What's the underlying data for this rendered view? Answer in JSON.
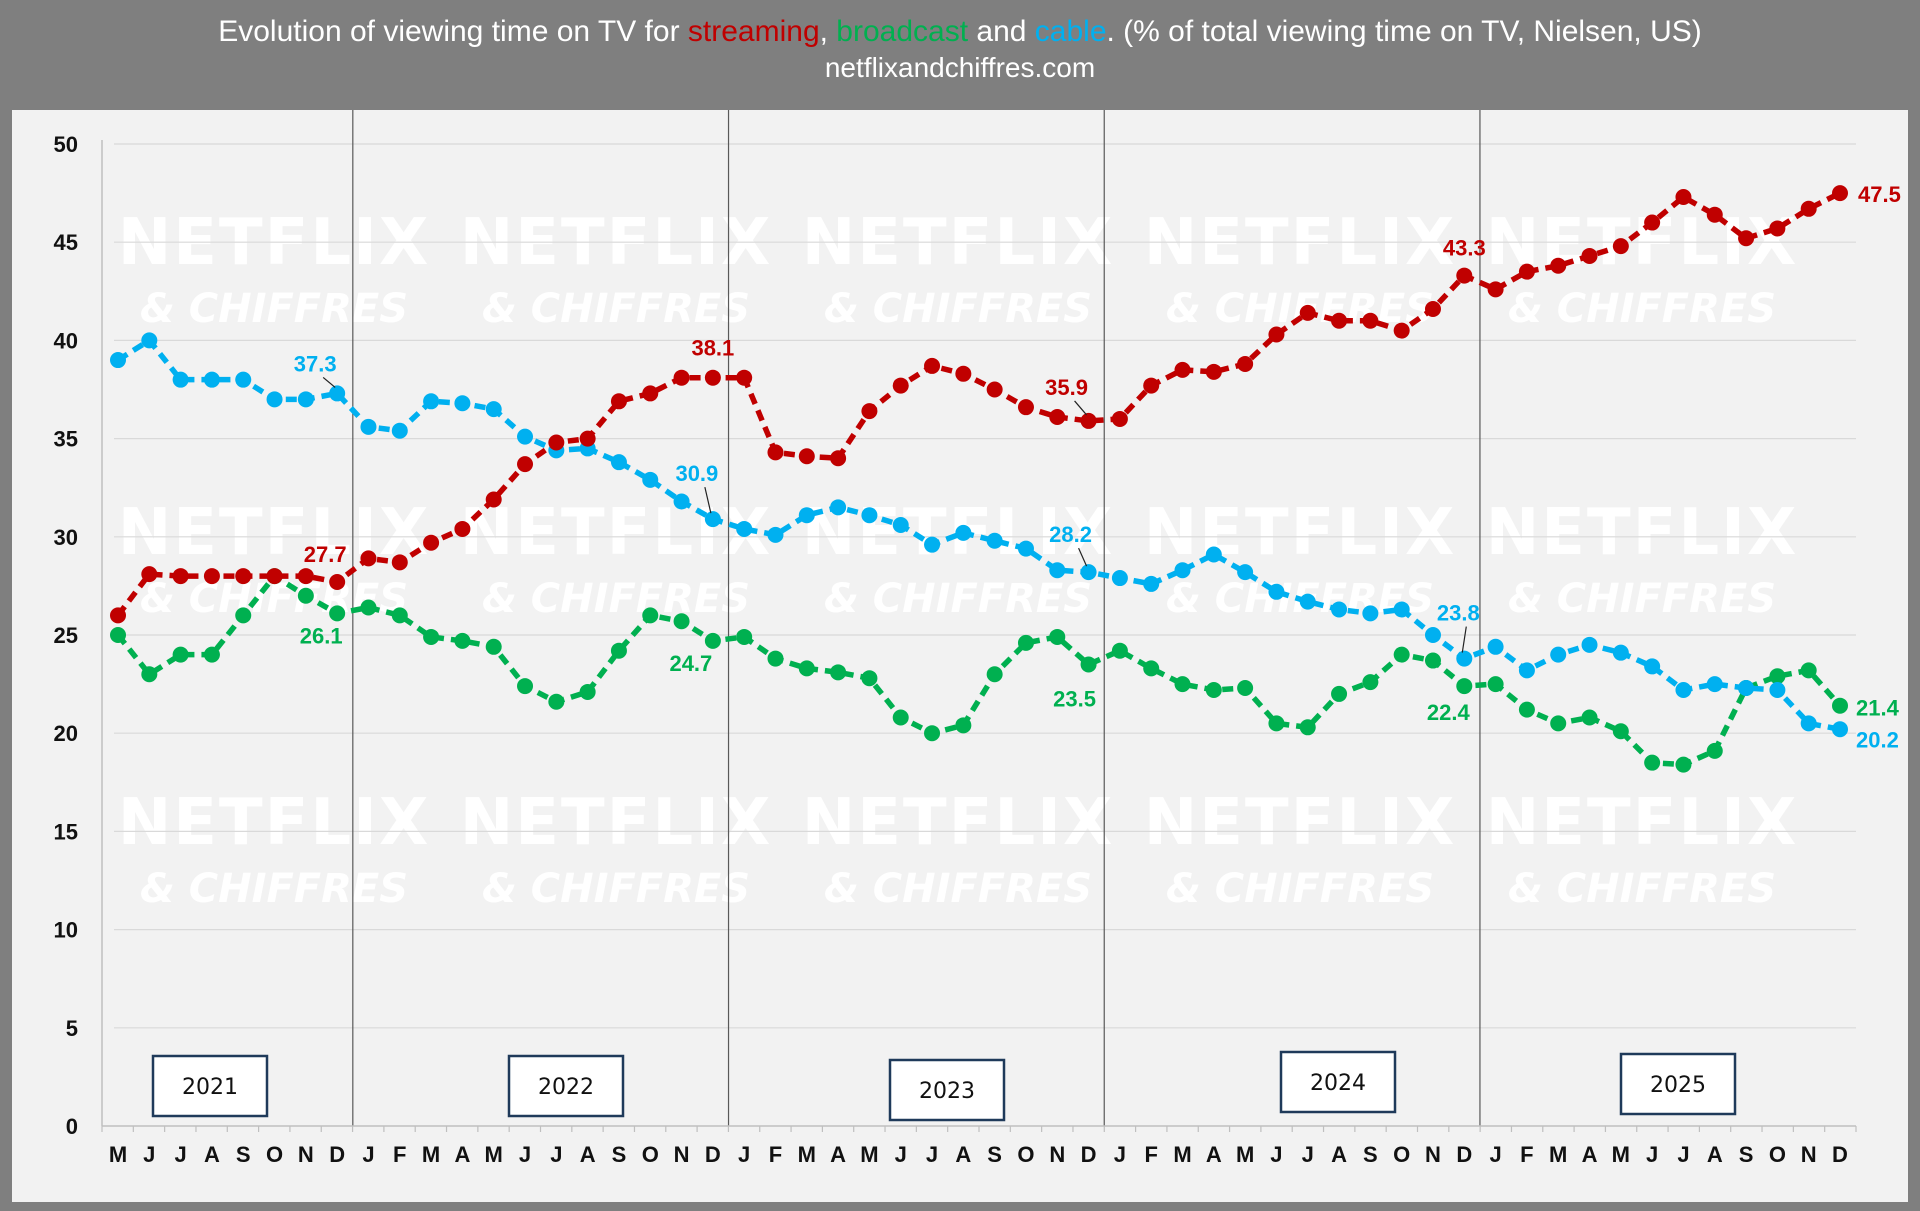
{
  "header": {
    "title_parts": {
      "prefix": "Evolution of viewing time on TV for ",
      "streaming": "streaming",
      "comma": ", ",
      "broadcast": "broadcast",
      "and": " and ",
      "cable": "cable",
      "suffix": ". (% of total viewing time on TV, Nielsen, US)"
    },
    "subtitle": "netflixandchiffres.com"
  },
  "colors": {
    "streaming": "#c00000",
    "broadcast": "#00b050",
    "cable": "#00b0f0",
    "background": "#7f7f7f",
    "panel": "#f2f2f2"
  },
  "watermark": {
    "line1": "NETFLIX",
    "line2": "& CHIFFRES"
  },
  "chart_data": {
    "type": "line",
    "title": "Evolution of viewing time on TV for streaming, broadcast and cable. (% of total viewing time on TV, Nielsen, US)",
    "subtitle": "netflixandchiffres.com",
    "xlabel": "",
    "ylabel": "",
    "ylim": [
      0,
      50
    ],
    "yticks": [
      0,
      5,
      10,
      15,
      20,
      25,
      30,
      35,
      40,
      45,
      50
    ],
    "categories": [
      "M",
      "J",
      "J",
      "A",
      "S",
      "O",
      "N",
      "D",
      "J",
      "F",
      "M",
      "A",
      "M",
      "J",
      "J",
      "A",
      "S",
      "O",
      "N",
      "D",
      "J",
      "F",
      "M",
      "A",
      "M",
      "J",
      "J",
      "A",
      "S",
      "O",
      "N",
      "D",
      "J",
      "F",
      "M",
      "A",
      "M",
      "J",
      "J",
      "A",
      "S",
      "O",
      "N",
      "D",
      "J",
      "F",
      "M",
      "A",
      "M",
      "J",
      "J",
      "A",
      "S",
      "O",
      "N",
      "D"
    ],
    "years": [
      "2021",
      "2022",
      "2023",
      "2024",
      "2025"
    ],
    "year_start_indices": [
      0,
      8,
      20,
      32,
      44
    ],
    "legend": "in title",
    "series": [
      {
        "name": "streaming",
        "color": "#c00000",
        "values": [
          26.0,
          28.1,
          28.0,
          28.0,
          28.0,
          28.0,
          28.0,
          27.7,
          28.9,
          28.7,
          29.7,
          30.4,
          31.9,
          33.7,
          34.8,
          35.0,
          36.9,
          37.3,
          38.1,
          38.1,
          38.1,
          34.3,
          34.1,
          34.0,
          36.4,
          37.7,
          38.7,
          38.3,
          37.5,
          36.6,
          36.1,
          35.9,
          36.0,
          37.7,
          38.5,
          38.4,
          38.8,
          40.3,
          41.4,
          41.0,
          41.0,
          40.5,
          41.6,
          43.3,
          42.6,
          43.5,
          43.8,
          44.3,
          44.8,
          46.0,
          47.3,
          46.4,
          45.2,
          45.7,
          46.7,
          47.5
        ]
      },
      {
        "name": "cable",
        "color": "#00b0f0",
        "values": [
          39.0,
          40.0,
          38.0,
          38.0,
          38.0,
          37.0,
          37.0,
          37.3,
          35.6,
          35.4,
          36.9,
          36.8,
          36.5,
          35.1,
          34.4,
          34.5,
          33.8,
          32.9,
          31.8,
          30.9,
          30.4,
          30.1,
          31.1,
          31.5,
          31.1,
          30.6,
          29.6,
          30.2,
          29.8,
          29.4,
          28.3,
          28.2,
          27.9,
          27.6,
          28.3,
          29.1,
          28.2,
          27.2,
          26.7,
          26.3,
          26.1,
          26.3,
          25.0,
          23.8,
          24.4,
          23.2,
          24.0,
          24.5,
          24.1,
          23.4,
          22.2,
          22.5,
          22.3,
          22.2,
          20.5,
          20.2
        ]
      },
      {
        "name": "broadcast",
        "color": "#00b050",
        "values": [
          25.0,
          23.0,
          24.0,
          24.0,
          26.0,
          28.0,
          27.0,
          26.1,
          26.4,
          26.0,
          24.9,
          24.7,
          24.4,
          22.4,
          21.6,
          22.1,
          24.2,
          26.0,
          25.7,
          24.7,
          24.9,
          23.8,
          23.3,
          23.1,
          22.8,
          20.8,
          20.0,
          20.4,
          23.0,
          24.6,
          24.9,
          23.5,
          24.2,
          23.3,
          22.5,
          22.2,
          22.3,
          20.5,
          20.3,
          22.0,
          22.6,
          24.0,
          23.7,
          22.4,
          22.5,
          21.2,
          20.5,
          20.8,
          20.1,
          18.5,
          18.4,
          19.1,
          22.3,
          22.9,
          23.2,
          21.4
        ]
      }
    ],
    "annotations": [
      {
        "series": "cable",
        "index": 7,
        "label": "37.3"
      },
      {
        "series": "streaming",
        "index": 7,
        "label": "27.7"
      },
      {
        "series": "broadcast",
        "index": 7,
        "label": "26.1"
      },
      {
        "series": "streaming",
        "index": 19,
        "label": "38.1"
      },
      {
        "series": "cable",
        "index": 19,
        "label": "30.9"
      },
      {
        "series": "broadcast",
        "index": 19,
        "label": "24.7"
      },
      {
        "series": "streaming",
        "index": 31,
        "label": "35.9"
      },
      {
        "series": "cable",
        "index": 31,
        "label": "28.2"
      },
      {
        "series": "broadcast",
        "index": 31,
        "label": "23.5"
      },
      {
        "series": "streaming",
        "index": 43,
        "label": "43.3"
      },
      {
        "series": "cable",
        "index": 43,
        "label": "23.8"
      },
      {
        "series": "broadcast",
        "index": 43,
        "label": "22.4"
      },
      {
        "series": "streaming",
        "index": 55,
        "label": "47.5"
      },
      {
        "series": "broadcast",
        "index": 55,
        "label": "21.4"
      },
      {
        "series": "cable",
        "index": 55,
        "label": "20.2"
      }
    ]
  }
}
